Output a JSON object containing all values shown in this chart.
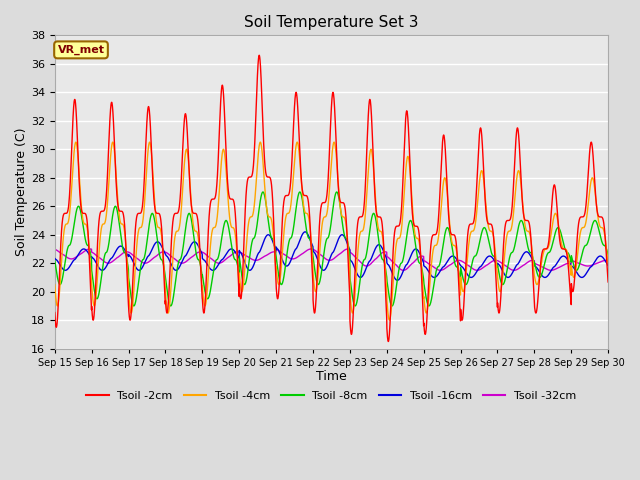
{
  "title": "Soil Temperature Set 3",
  "xlabel": "Time",
  "ylabel": "Soil Temperature (C)",
  "ylim": [
    16,
    38
  ],
  "xlim": [
    0,
    15
  ],
  "x_tick_labels": [
    "Sep 15",
    "Sep 16",
    "Sep 17",
    "Sep 18",
    "Sep 19",
    "Sep 20",
    "Sep 21",
    "Sep 22",
    "Sep 23",
    "Sep 24",
    "Sep 25",
    "Sep 26",
    "Sep 27",
    "Sep 28",
    "Sep 29",
    "Sep 30"
  ],
  "yticks": [
    16,
    18,
    20,
    22,
    24,
    26,
    28,
    30,
    32,
    34,
    36,
    38
  ],
  "series": {
    "Tsoil -2cm": {
      "color": "#FF0000"
    },
    "Tsoil -4cm": {
      "color": "#FFA500"
    },
    "Tsoil -8cm": {
      "color": "#00CC00"
    },
    "Tsoil -16cm": {
      "color": "#0000DD"
    },
    "Tsoil -32cm": {
      "color": "#CC00CC"
    }
  },
  "fig_bg_color": "#DCDCDC",
  "plot_bg_color": "#E8E8E8",
  "grid_color": "#FFFFFF",
  "annotation_text": "VR_met",
  "annotation_bg": "#FFFF99",
  "annotation_border": "#996600",
  "peak_2cm": [
    33.5,
    33.3,
    33.0,
    32.5,
    34.5,
    36.6,
    34.0,
    34.0,
    33.5,
    32.7,
    31.0,
    31.5,
    31.5,
    27.5,
    30.5
  ],
  "trough_2cm": [
    17.5,
    18.0,
    18.0,
    18.5,
    18.5,
    19.5,
    19.5,
    18.5,
    17.0,
    16.5,
    17.0,
    18.0,
    18.5,
    18.5,
    20.0
  ],
  "peak_4cm": [
    30.5,
    30.5,
    30.5,
    30.0,
    30.0,
    30.5,
    30.5,
    30.5,
    30.0,
    29.5,
    28.0,
    28.5,
    28.5,
    25.5,
    28.0
  ],
  "trough_4cm": [
    19.0,
    19.0,
    18.5,
    18.5,
    19.0,
    20.0,
    20.5,
    20.0,
    18.5,
    18.0,
    18.5,
    20.0,
    20.0,
    20.5,
    21.0
  ],
  "peak_8cm": [
    26.0,
    26.0,
    25.5,
    25.5,
    25.0,
    27.0,
    27.0,
    27.0,
    25.5,
    25.0,
    24.5,
    24.5,
    25.0,
    24.5,
    25.0
  ],
  "trough_8cm": [
    20.5,
    19.5,
    19.0,
    19.0,
    19.5,
    20.5,
    20.5,
    20.5,
    19.0,
    19.0,
    19.0,
    20.5,
    20.5,
    21.0,
    21.5
  ],
  "peak_16cm": [
    23.0,
    23.2,
    23.5,
    23.5,
    23.0,
    24.0,
    24.2,
    24.0,
    23.3,
    23.0,
    22.5,
    22.5,
    22.8,
    22.5,
    22.5
  ],
  "trough_16cm": [
    21.5,
    21.5,
    21.5,
    21.5,
    21.5,
    21.5,
    21.8,
    21.5,
    21.0,
    20.8,
    21.0,
    21.0,
    21.0,
    21.0,
    21.0
  ],
  "peak_32cm": [
    23.0,
    22.8,
    22.8,
    22.8,
    22.8,
    22.8,
    23.0,
    23.0,
    22.8,
    22.5,
    22.2,
    22.2,
    22.2,
    22.0,
    22.2
  ],
  "trough_32cm": [
    22.3,
    22.0,
    22.0,
    22.0,
    22.0,
    22.2,
    22.3,
    22.2,
    21.8,
    21.5,
    21.5,
    21.5,
    21.5,
    21.5,
    21.8
  ]
}
